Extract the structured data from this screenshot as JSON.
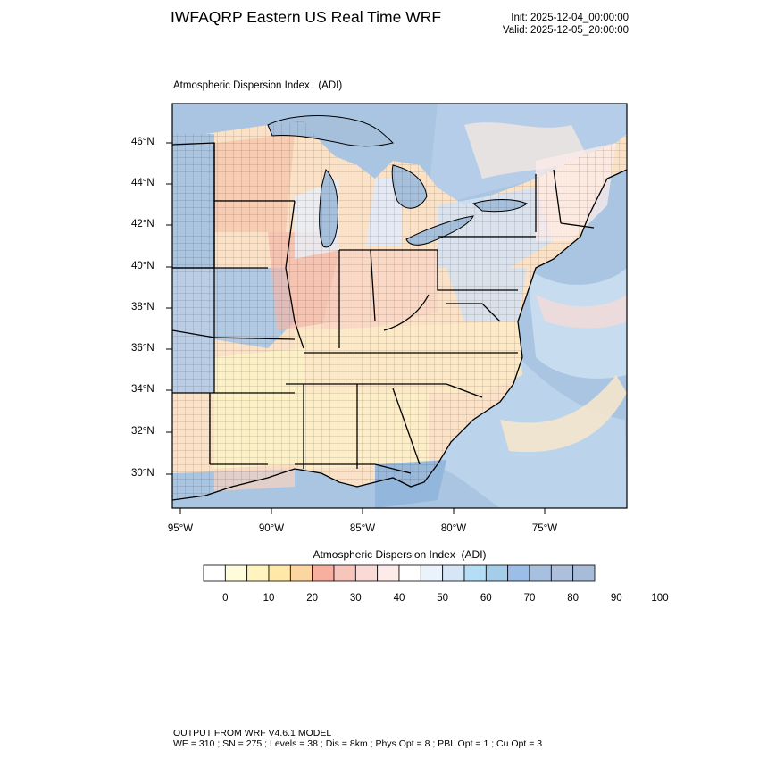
{
  "header": {
    "title": "IWFAQRP Eastern US Real Time WRF",
    "init": "Init: 2025-12-04_00:00:00",
    "valid": "Valid: 2025-12-05_20:00:00"
  },
  "map": {
    "subtitle": "Atmospheric Dispersion Index   (ADI)",
    "lat_labels": [
      "46°N",
      "44°N",
      "42°N",
      "40°N",
      "38°N",
      "36°N",
      "34°N",
      "32°N",
      "30°N"
    ],
    "lon_labels": [
      "95°W",
      "90°W",
      "85°W",
      "80°W",
      "75°W"
    ]
  },
  "legend": {
    "title": "Atmospheric Dispersion Index  (ADI)",
    "labels": [
      "0",
      "10",
      "20",
      "30",
      "40",
      "50",
      "60",
      "70",
      "80",
      "90",
      "100"
    ],
    "colors": [
      "#ffffff",
      "#fffcdc",
      "#fff4c0",
      "#ffe8a8",
      "#fcd6a0",
      "#f7b0a0",
      "#f6c6bc",
      "#fadad4",
      "#fcebe8",
      "#ffffff",
      "#eaf2fc",
      "#d6e6f7",
      "#b5ddf5",
      "#a6cde8",
      "#9cbde6",
      "#a8c0e0",
      "#adbfdb",
      "#a6bcd8"
    ]
  },
  "footer": {
    "line1": "OUTPUT FROM WRF V4.6.1 MODEL",
    "line2": "WE = 310 ; SN = 275 ; Levels = 38 ; Dis = 8km ; Phys Opt = 8 ; PBL Opt = 1 ; Cu Opt = 3"
  }
}
